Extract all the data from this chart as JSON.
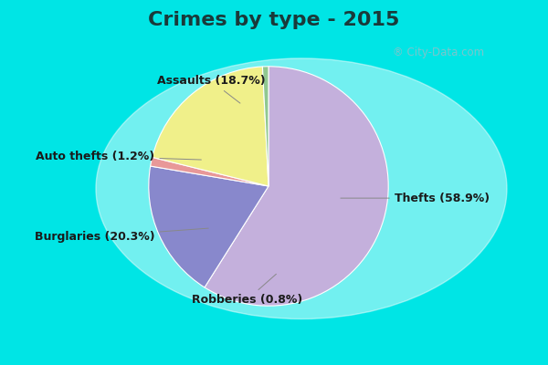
{
  "title": "Crimes by type - 2015",
  "values": [
    58.9,
    18.7,
    1.2,
    20.3,
    0.8
  ],
  "colors": [
    "#c4b0dc",
    "#8888cc",
    "#e89898",
    "#f0f08a",
    "#90c890"
  ],
  "label_texts": [
    "Thefts (58.9%)",
    "Assaults (18.7%)",
    "Auto thefts (1.2%)",
    "Burglaries (20.3%)",
    "Robberies (0.8%)"
  ],
  "background_cyan": "#00e5e5",
  "background_green": "#c5e8d0",
  "title_fontsize": 16,
  "label_fontsize": 9,
  "startangle": 90,
  "watermark": "City-Data.com"
}
